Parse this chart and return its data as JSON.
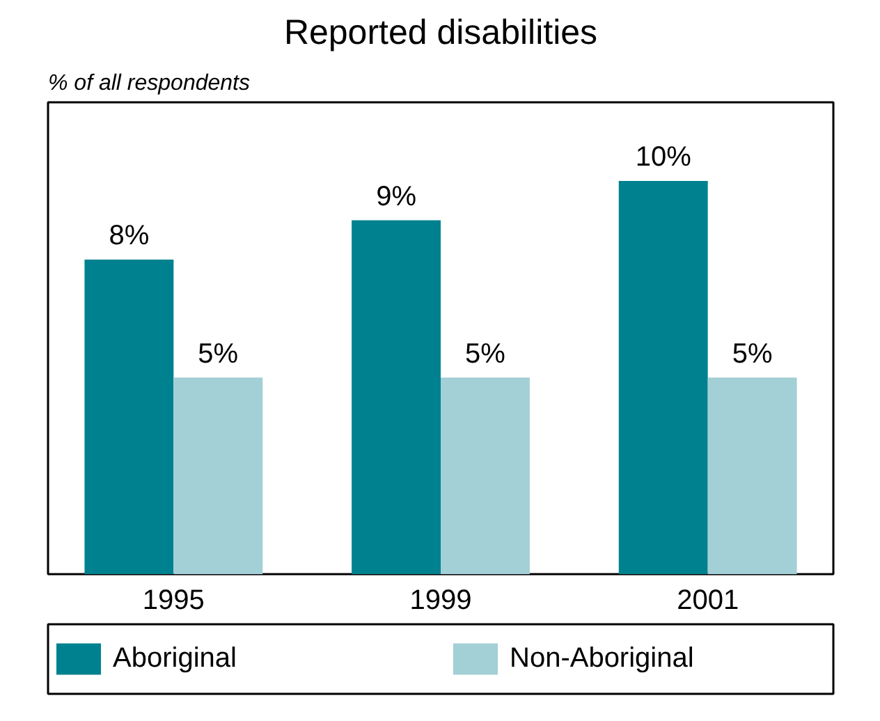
{
  "chart_data": {
    "type": "bar",
    "title": "Reported disabilities",
    "ylabel": "% of all respondents",
    "categories": [
      "1995",
      "1999",
      "2001"
    ],
    "series": [
      {
        "name": "Aboriginal",
        "color": "#00818f",
        "values": [
          8,
          9,
          10
        ],
        "value_labels": [
          "8%",
          "9%",
          "10%"
        ]
      },
      {
        "name": "Non-Aboriginal",
        "color": "#a3cfd6",
        "values": [
          5,
          5,
          5
        ],
        "value_labels": [
          "5%",
          "5%",
          "5%"
        ]
      }
    ],
    "legend": "bottom",
    "tick_labels": "x"
  }
}
